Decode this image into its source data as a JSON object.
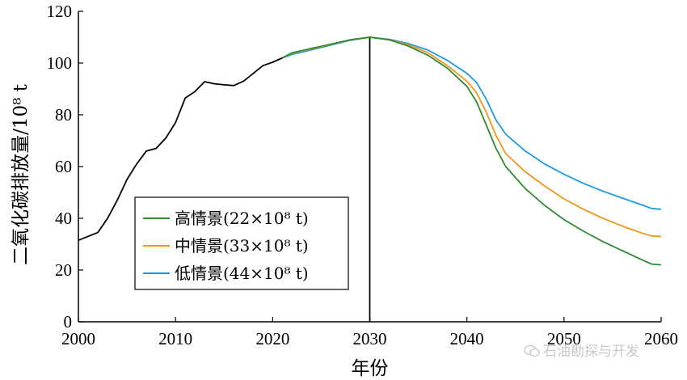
{
  "chart_data": {
    "type": "line",
    "title": "",
    "xlabel": "年份",
    "ylabel": "二氧化碳排放量/10⁸ t",
    "xlim": [
      2000,
      2060
    ],
    "ylim": [
      0,
      120
    ],
    "xticks": [
      2000,
      2010,
      2020,
      2030,
      2040,
      2050,
      2060
    ],
    "yticks": [
      0,
      20,
      40,
      60,
      80,
      100,
      120
    ],
    "grid": false,
    "legend_position": "lower-left",
    "vline_x": 2030,
    "history": {
      "color": "#000000",
      "points": [
        [
          2000,
          31.5
        ],
        [
          2002,
          34.5
        ],
        [
          2003,
          40
        ],
        [
          2004,
          47
        ],
        [
          2005,
          55
        ],
        [
          2006,
          61
        ],
        [
          2007,
          66
        ],
        [
          2008,
          67
        ],
        [
          2009,
          71
        ],
        [
          2010,
          77
        ],
        [
          2011,
          86.5
        ],
        [
          2012,
          89
        ],
        [
          2013,
          92.8
        ],
        [
          2014,
          92
        ],
        [
          2015,
          91.6
        ],
        [
          2016,
          91.3
        ],
        [
          2017,
          93
        ],
        [
          2018,
          96
        ],
        [
          2019,
          99
        ],
        [
          2020,
          100.3
        ],
        [
          2021,
          102
        ]
      ]
    },
    "series": [
      {
        "name": "高情景(22×10⁸ t)",
        "color": "#2e8b2e",
        "points": [
          [
            2021,
            102
          ],
          [
            2022,
            104
          ],
          [
            2025,
            106.5
          ],
          [
            2028,
            109
          ],
          [
            2030,
            110
          ],
          [
            2032,
            109
          ],
          [
            2034,
            106.5
          ],
          [
            2036,
            103
          ],
          [
            2038,
            98
          ],
          [
            2040,
            91
          ],
          [
            2041,
            85
          ],
          [
            2042,
            76
          ],
          [
            2043,
            67
          ],
          [
            2044,
            60
          ],
          [
            2046,
            51.5
          ],
          [
            2048,
            45
          ],
          [
            2050,
            39.5
          ],
          [
            2052,
            35
          ],
          [
            2054,
            31
          ],
          [
            2056,
            27.5
          ],
          [
            2058,
            24
          ],
          [
            2059,
            22.3
          ],
          [
            2060,
            22
          ]
        ]
      },
      {
        "name": "中情景(33×10⁸ t)",
        "color": "#f0961e",
        "points": [
          [
            2021,
            102
          ],
          [
            2022,
            103.8
          ],
          [
            2025,
            106.3
          ],
          [
            2028,
            109
          ],
          [
            2030,
            110
          ],
          [
            2032,
            109
          ],
          [
            2034,
            107
          ],
          [
            2036,
            104
          ],
          [
            2038,
            99
          ],
          [
            2040,
            93
          ],
          [
            2041,
            88.5
          ],
          [
            2042,
            81
          ],
          [
            2043,
            72
          ],
          [
            2044,
            65
          ],
          [
            2046,
            58
          ],
          [
            2048,
            52.5
          ],
          [
            2050,
            47.5
          ],
          [
            2052,
            43.5
          ],
          [
            2054,
            40
          ],
          [
            2056,
            37
          ],
          [
            2058,
            34.3
          ],
          [
            2059,
            33.2
          ],
          [
            2060,
            33
          ]
        ]
      },
      {
        "name": "低情景(44×10⁸ t)",
        "color": "#1e9ae0",
        "points": [
          [
            2021,
            102
          ],
          [
            2022,
            103.3
          ],
          [
            2025,
            106
          ],
          [
            2028,
            108.8
          ],
          [
            2030,
            110
          ],
          [
            2032,
            109.2
          ],
          [
            2034,
            107.5
          ],
          [
            2036,
            105
          ],
          [
            2038,
            101
          ],
          [
            2040,
            96
          ],
          [
            2041,
            92.5
          ],
          [
            2042,
            86
          ],
          [
            2043,
            78
          ],
          [
            2044,
            72.5
          ],
          [
            2046,
            66
          ],
          [
            2048,
            61
          ],
          [
            2050,
            57
          ],
          [
            2052,
            53.5
          ],
          [
            2054,
            50.5
          ],
          [
            2056,
            47.8
          ],
          [
            2058,
            45.2
          ],
          [
            2059,
            43.8
          ],
          [
            2060,
            43.5
          ]
        ]
      }
    ]
  },
  "watermark": {
    "text": "石油勘探与开发",
    "icon": "wechat-icon"
  }
}
